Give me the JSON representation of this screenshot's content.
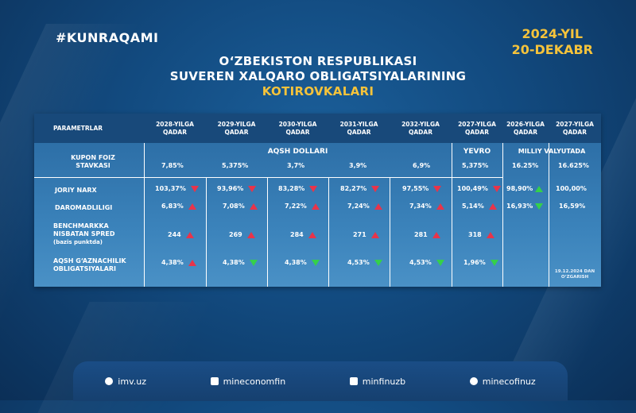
{
  "hashtag": "#KUNRAQAMI",
  "date": {
    "line1": "2024-YIL",
    "line2": "20-DEKABR"
  },
  "title": {
    "line1": "O‘ZBEKISTON RESPUBLIKASI",
    "line2": "SUVEREN XALQARO OBLIGATSIYALARINING",
    "line3": "KOTIROVKALARI"
  },
  "table": {
    "param_header": "PARAMETRLAR",
    "columns": [
      {
        "l1": "2028-YILGA",
        "l2": "QADAR"
      },
      {
        "l1": "2029-YILGA",
        "l2": "QADAR"
      },
      {
        "l1": "2030-YILGA",
        "l2": "QADAR"
      },
      {
        "l1": "2031-YILGA",
        "l2": "QADAR"
      },
      {
        "l1": "2032-YILGA",
        "l2": "QADAR"
      },
      {
        "l1": "2027-YILGA",
        "l2": "QADAR"
      },
      {
        "l1": "2026-YILGA",
        "l2": "QADAR"
      },
      {
        "l1": "2027-YILGA",
        "l2": "QADAR"
      }
    ],
    "groups": {
      "usd": "AQSH DOLLARI",
      "eur": "YEVRO",
      "local": "MILLIY VALYUTADA"
    },
    "rows": {
      "kupon": {
        "l1": "KUPON FOIZ",
        "l2": "STAVKASI",
        "values": [
          "7,85%",
          "5,375%",
          "3,7%",
          "3,9%",
          "6,9%",
          "5,375%",
          "16.25%",
          "16.625%"
        ]
      },
      "narx": {
        "label": "JORIY NARX",
        "values": [
          "103,37%",
          "93,96%",
          "83,28%",
          "82,27%",
          "97,55%",
          "100,49%",
          "98,90%",
          "100,00%"
        ],
        "arrows": [
          "down-red",
          "down-red",
          "down-red",
          "down-red",
          "down-red",
          "down-red",
          "up-green",
          ""
        ]
      },
      "daromad": {
        "label": "DAROMADLILIGI",
        "values": [
          "6,83%",
          "7,08%",
          "7,22%",
          "7,24%",
          "7,34%",
          "5,14%",
          "16,93%",
          "16,59%"
        ],
        "arrows": [
          "up-red",
          "up-red",
          "up-red",
          "up-red",
          "up-red",
          "up-red",
          "down-green",
          ""
        ]
      },
      "spred": {
        "l1": "BENCHMARKKA",
        "l2": "NISBATAN SPRED",
        "l3": "(bazis punktda)",
        "values": [
          "244",
          "269",
          "284",
          "271",
          "281",
          "318"
        ],
        "arrows": [
          "up-red",
          "up-red",
          "up-red",
          "up-red",
          "up-red",
          "up-red"
        ]
      },
      "gazna": {
        "l1": "AQSH G‘AZNACHILIK",
        "l2": "OBLIGATSIYALARI",
        "values": [
          "4,38%",
          "4,38%",
          "4,38%",
          "4,53%",
          "4,53%",
          "1,96%"
        ],
        "arrows": [
          "up-red",
          "down-green",
          "down-green",
          "down-green",
          "down-green",
          "down-green"
        ]
      }
    },
    "note": {
      "l1": "19.12.2024 DAN",
      "l2": "O‘ZGARISH"
    }
  },
  "footer": [
    {
      "icon": "globe-icon",
      "text": "imv.uz"
    },
    {
      "icon": "facebook-icon",
      "text": "mineconomfin"
    },
    {
      "icon": "instagram-icon",
      "text": "minfinuzb"
    },
    {
      "icon": "telegram-icon",
      "text": "minecofinuz"
    }
  ],
  "colors": {
    "accent": "#f5c33b",
    "up_red": "#e8344a",
    "down_green": "#35d04a",
    "header_bg": "#18497a"
  }
}
